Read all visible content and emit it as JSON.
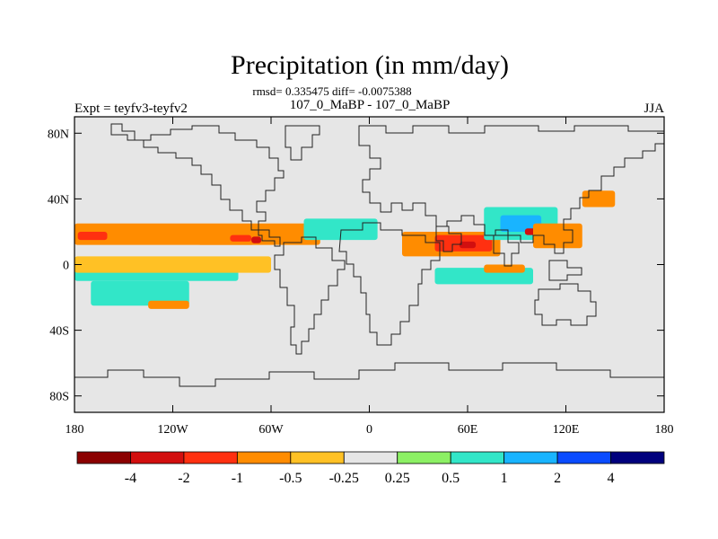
{
  "chart_data": {
    "type": "heatmap",
    "title": "Precipitation (in mm/day)",
    "subtitle_stats": "rmsd= 0.335475 diff= -0.0075388",
    "subtitle_runs": "107_0_MaBP - 107_0_MaBP",
    "left_label": "Expt = teyfv3-teyfv2",
    "right_label": "JJA",
    "xlim": [
      -180,
      180
    ],
    "ylim": [
      -90,
      90
    ],
    "x_ticks": [
      {
        "value": -180,
        "label": "180"
      },
      {
        "value": -120,
        "label": "120W"
      },
      {
        "value": -60,
        "label": "60W"
      },
      {
        "value": 0,
        "label": "0"
      },
      {
        "value": 60,
        "label": "60E"
      },
      {
        "value": 120,
        "label": "120E"
      },
      {
        "value": 180,
        "label": "180"
      }
    ],
    "y_ticks": [
      {
        "value": 80,
        "label": "80N"
      },
      {
        "value": 40,
        "label": "40N"
      },
      {
        "value": 0,
        "label": "0"
      },
      {
        "value": -40,
        "label": "40S"
      },
      {
        "value": -80,
        "label": "80S"
      }
    ],
    "colorbar": {
      "levels": [
        "-4",
        "-2",
        "-1",
        "-0.5",
        "-0.25",
        "0.25",
        "0.5",
        "1",
        "2",
        "4"
      ],
      "colors": [
        "#8b0000",
        "#d20f0f",
        "#ff3010",
        "#ff8c00",
        "#ffc125",
        "#e6e6e6",
        "#8cf064",
        "#32e6c8",
        "#19b4ff",
        "#0a4bff",
        "#00007d"
      ]
    },
    "regions": [
      {
        "lon": [
          -180,
          -30
        ],
        "lat": [
          12,
          25
        ],
        "level": "-0.5"
      },
      {
        "lon": [
          -178,
          -160
        ],
        "lat": [
          15,
          20
        ],
        "level": "-1"
      },
      {
        "lon": [
          -105,
          -70
        ],
        "lat": [
          12,
          20
        ],
        "level": "-0.5"
      },
      {
        "lon": [
          -85,
          -72
        ],
        "lat": [
          14,
          18
        ],
        "level": "-1"
      },
      {
        "lon": [
          -72,
          -66
        ],
        "lat": [
          13,
          17
        ],
        "level": "-2"
      },
      {
        "lon": [
          -40,
          5
        ],
        "lat": [
          15,
          28
        ],
        "level": "0.5"
      },
      {
        "lon": [
          20,
          80
        ],
        "lat": [
          5,
          20
        ],
        "level": "-0.5"
      },
      {
        "lon": [
          40,
          75
        ],
        "lat": [
          8,
          18
        ],
        "level": "-1"
      },
      {
        "lon": [
          55,
          65
        ],
        "lat": [
          10,
          14
        ],
        "level": "-2"
      },
      {
        "lon": [
          70,
          115
        ],
        "lat": [
          15,
          35
        ],
        "level": "0.5"
      },
      {
        "lon": [
          80,
          105
        ],
        "lat": [
          20,
          30
        ],
        "level": "1"
      },
      {
        "lon": [
          95,
          110
        ],
        "lat": [
          18,
          22
        ],
        "level": "-2"
      },
      {
        "lon": [
          100,
          130
        ],
        "lat": [
          10,
          25
        ],
        "level": "-0.5"
      },
      {
        "lon": [
          130,
          150
        ],
        "lat": [
          35,
          45
        ],
        "level": "-0.5"
      },
      {
        "lon": [
          -180,
          -80
        ],
        "lat": [
          -10,
          -3
        ],
        "level": "0.5"
      },
      {
        "lon": [
          -170,
          -110
        ],
        "lat": [
          -25,
          -10
        ],
        "level": "0.5"
      },
      {
        "lon": [
          -135,
          -110
        ],
        "lat": [
          -27,
          -22
        ],
        "level": "-0.5"
      },
      {
        "lon": [
          40,
          100
        ],
        "lat": [
          -12,
          -2
        ],
        "level": "0.5"
      },
      {
        "lon": [
          70,
          95
        ],
        "lat": [
          -5,
          0
        ],
        "level": "-0.5"
      },
      {
        "lon": [
          -180,
          -60
        ],
        "lat": [
          -5,
          5
        ],
        "level": "-0.25"
      }
    ]
  }
}
